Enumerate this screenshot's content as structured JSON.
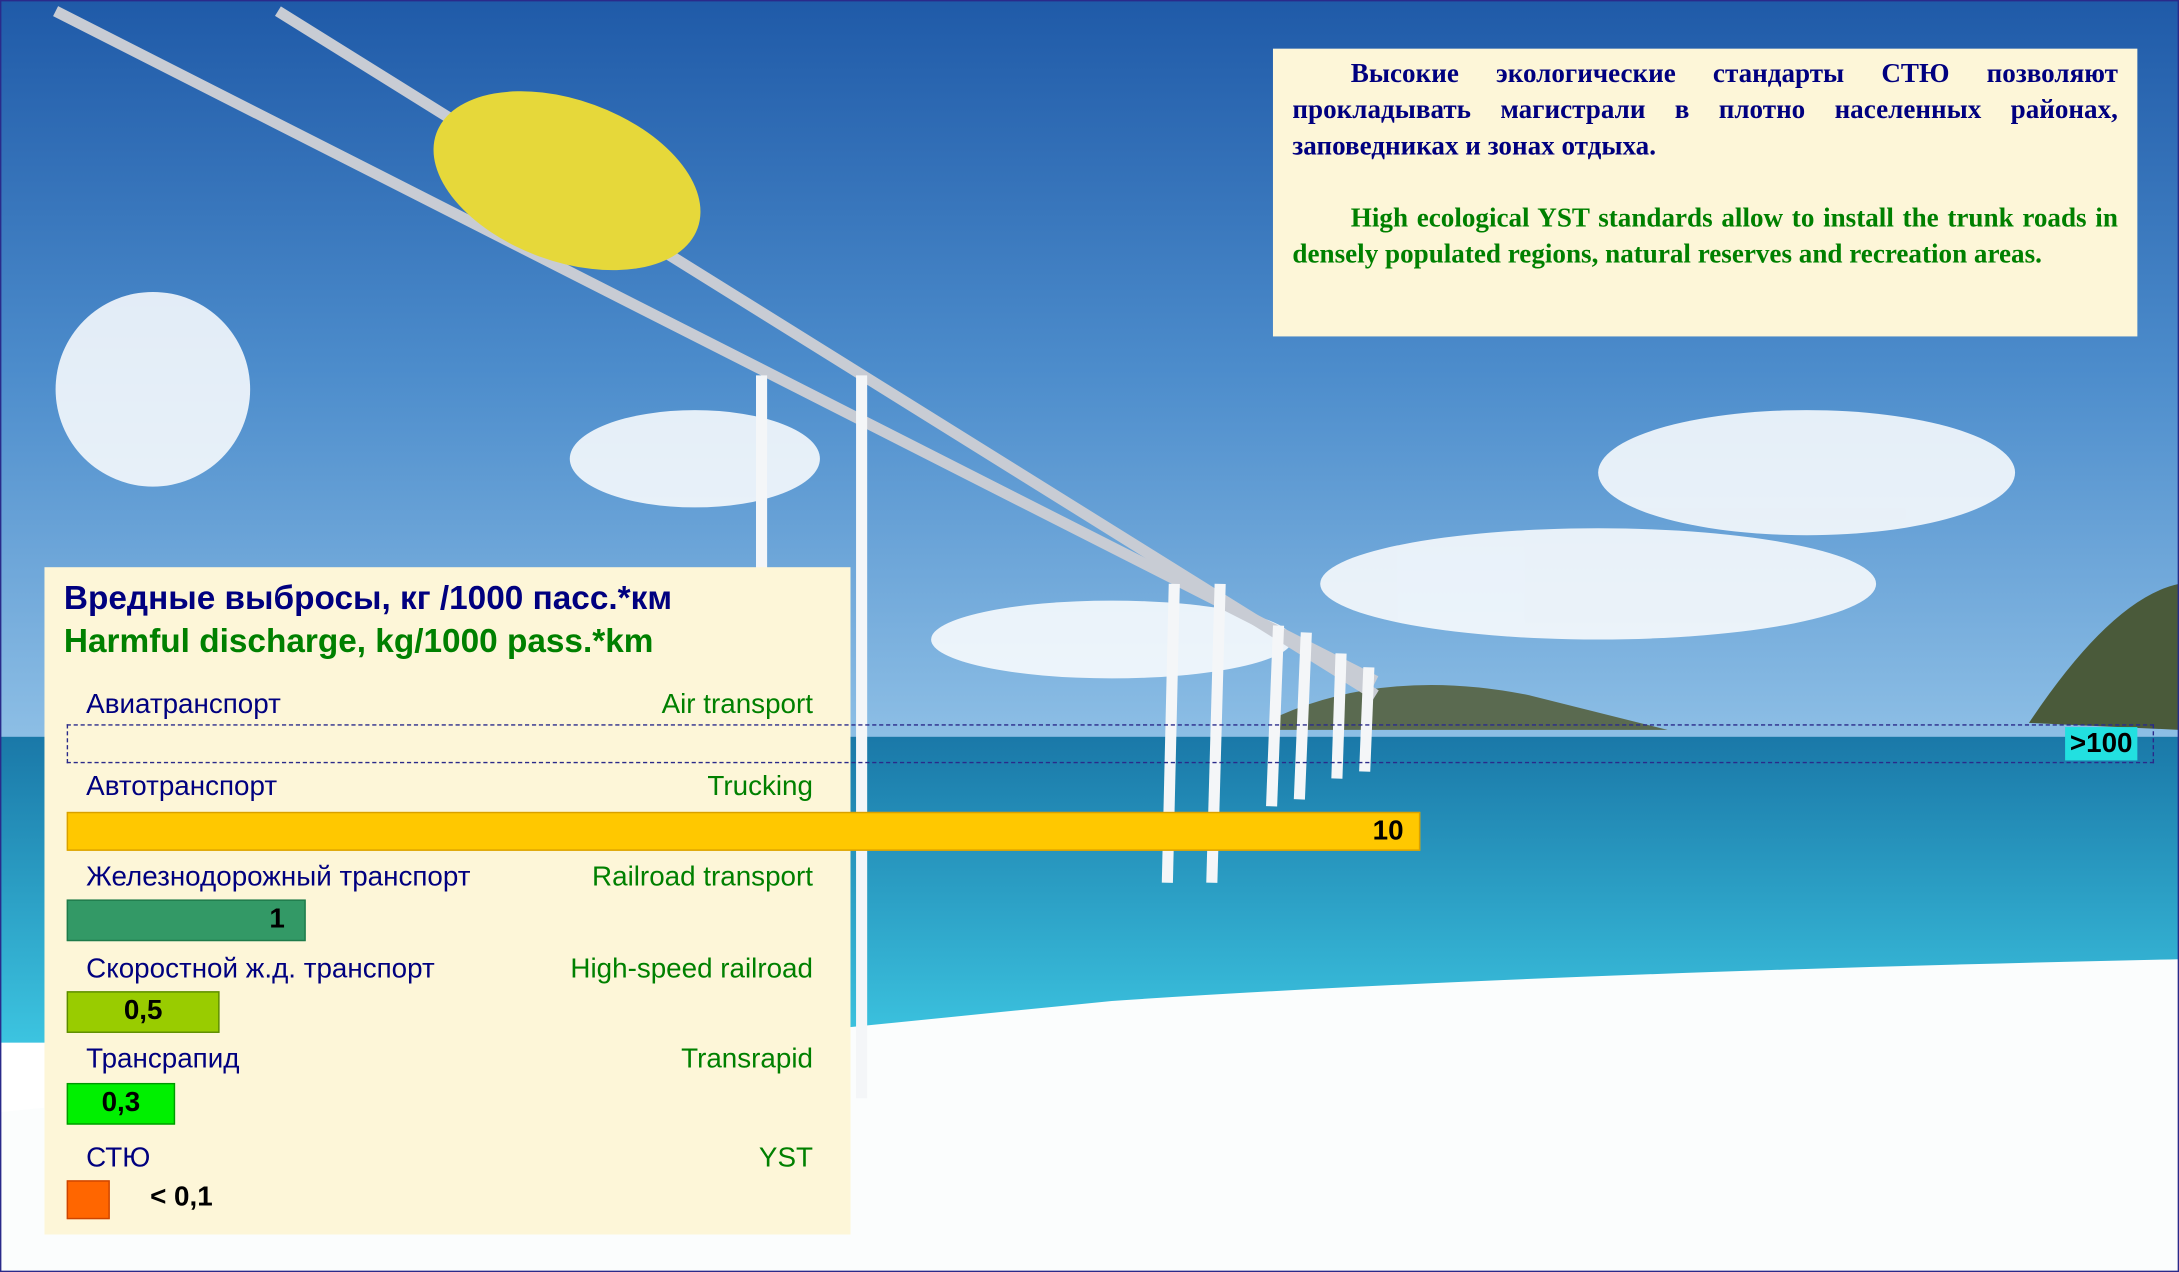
{
  "info_box": {
    "paragraph_ru": "Высокие экологические стандарты СТЮ позволяют прокладывать магистрали в плотно населенных районах, заповедниках и зонах отдыха.",
    "paragraph_en": "High ecological YST standards allow to install the trunk roads in densely populated regions, natural reserves and recreation areas."
  },
  "emission_panel": {
    "title_ru": "Вредные выбросы, кг /1000 пасс.*км",
    "title_en": "Harmful discharge, kg/1000 pass.*km",
    "rows": [
      {
        "label_ru": "Авиатранспорт",
        "label_en": "Air transport",
        "value": ">100"
      },
      {
        "label_ru": "Автотранспорт",
        "label_en": "Trucking",
        "value": "10"
      },
      {
        "label_ru": "Железнодорожный транспорт",
        "label_en": "Railroad transport",
        "value": "1"
      },
      {
        "label_ru": "Скоростной ж.д. транспорт",
        "label_en": "High-speed railroad",
        "value": "0,5"
      },
      {
        "label_ru": "Трансрапид",
        "label_en": "Transrapid",
        "value": "0,3"
      },
      {
        "label_ru": "СТЮ",
        "label_en": "YST",
        "value": "< 0,1"
      }
    ]
  }
}
